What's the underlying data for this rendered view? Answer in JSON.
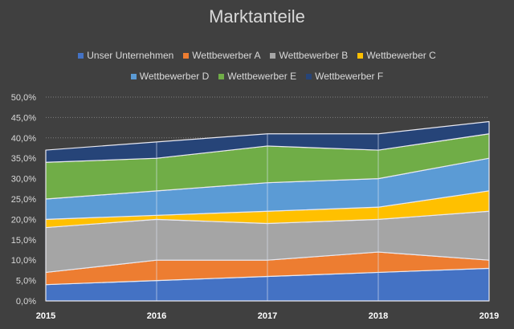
{
  "chart_data": {
    "type": "area",
    "stacked": true,
    "title": "Marktanteile",
    "categories": [
      "2015",
      "2016",
      "2017",
      "2018",
      "2019"
    ],
    "ylim": [
      0,
      50
    ],
    "ytick_step": 5,
    "ytick_format": "percent-1-decimal-comma",
    "grid": true,
    "legend_position": "top",
    "series": [
      {
        "name": "Unser Unternehmen",
        "color": "#4472C4",
        "values": [
          4,
          5,
          6,
          7,
          8
        ]
      },
      {
        "name": "Wettbewerber A",
        "color": "#ED7D31",
        "values": [
          3,
          5,
          4,
          5,
          2
        ]
      },
      {
        "name": "Wettbewerber B",
        "color": "#A5A5A5",
        "values": [
          11,
          10,
          9,
          8,
          12
        ]
      },
      {
        "name": "Wettbewerber C",
        "color": "#FFC000",
        "values": [
          2,
          1,
          3,
          3,
          5
        ]
      },
      {
        "name": "Wettbewerber D",
        "color": "#5B9BD5",
        "values": [
          5,
          6,
          7,
          7,
          8
        ]
      },
      {
        "name": "Wettbewerber E",
        "color": "#70AD47",
        "values": [
          9,
          8,
          9,
          7,
          6
        ]
      },
      {
        "name": "Wettbewerber F",
        "color": "#264478",
        "values": [
          3,
          4,
          3,
          4,
          3
        ]
      }
    ],
    "yticks": [
      "0,0%",
      "5,0%",
      "10,0%",
      "15,0%",
      "20,0%",
      "25,0%",
      "30,0%",
      "35,0%",
      "40,0%",
      "45,0%",
      "50,0%"
    ]
  }
}
